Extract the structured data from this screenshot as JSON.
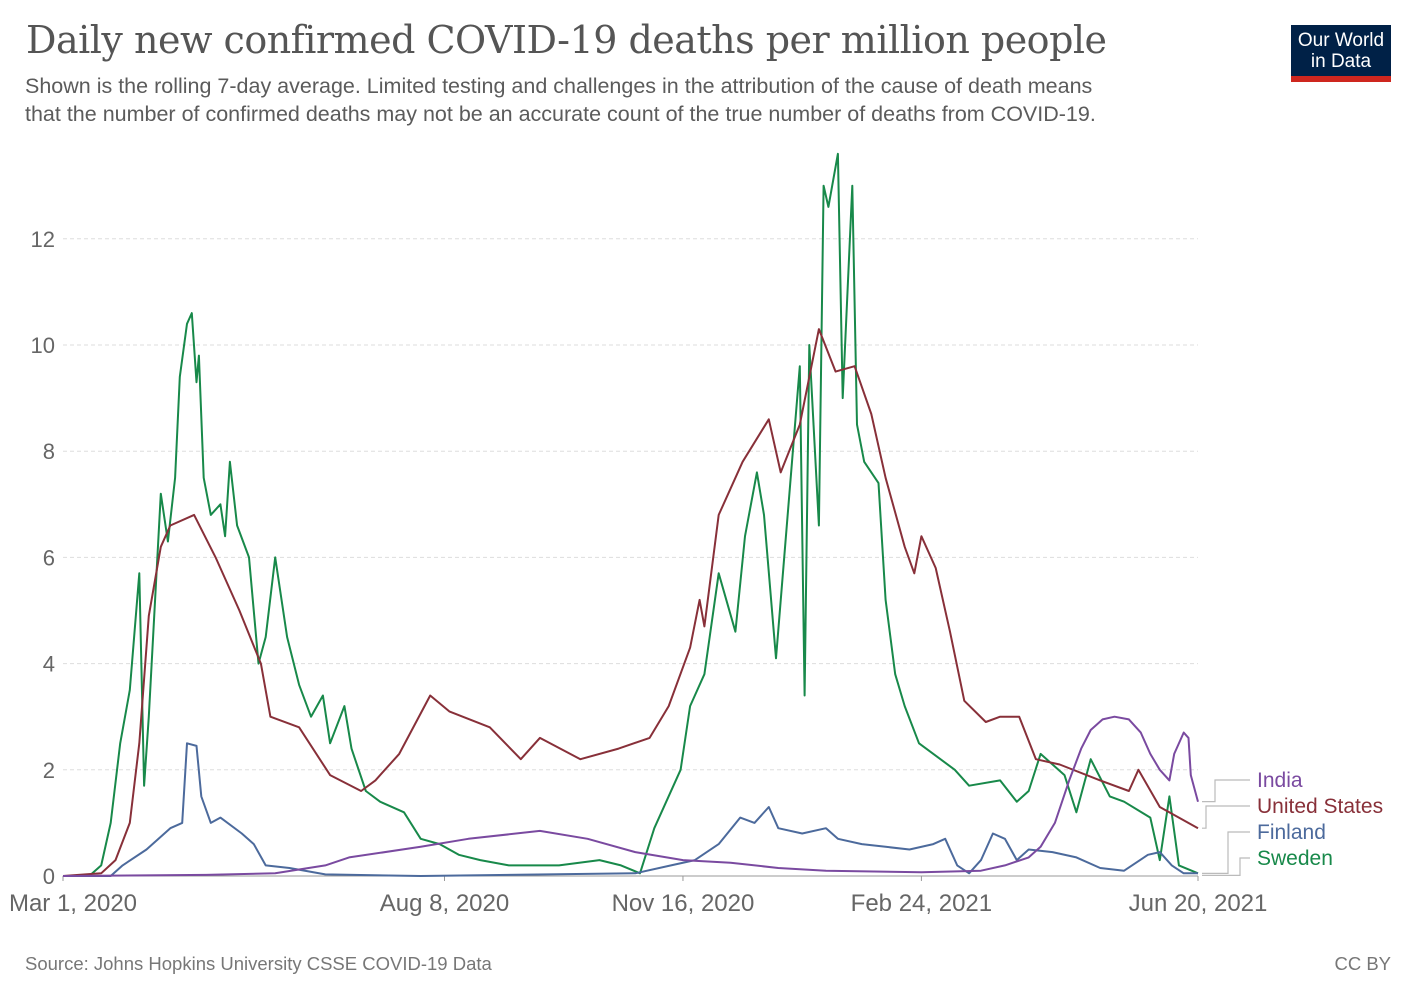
{
  "header": {
    "title": "Daily new confirmed COVID-19 deaths per million people",
    "subtitle_line1": "Shown is the rolling 7-day average. Limited testing and challenges in the attribution of the cause of death means",
    "subtitle_line2": "that the number of confirmed deaths may not be an accurate count of the true number of deaths from COVID-19.",
    "logo_line1": "Our World",
    "logo_line2": "in Data"
  },
  "footer": {
    "source": "Source: Johns Hopkins University CSSE COVID-19 Data",
    "license": "CC BY"
  },
  "chart_data": {
    "type": "line",
    "title": "Daily new confirmed COVID-19 deaths per million people",
    "xlabel": "",
    "ylabel": "",
    "xlim": [
      "2020-03-01",
      "2021-06-20"
    ],
    "ylim": [
      0,
      13.7
    ],
    "grid": "horizontal dashed",
    "legend": "right, labels at line ends",
    "x_ticks": [
      {
        "date": "2020-03-01",
        "label": "Mar 1, 2020"
      },
      {
        "date": "2020-08-08",
        "label": "Aug 8, 2020"
      },
      {
        "date": "2020-11-16",
        "label": "Nov 16, 2020"
      },
      {
        "date": "2021-02-24",
        "label": "Feb 24, 2021"
      },
      {
        "date": "2021-06-20",
        "label": "Jun 20, 2021"
      }
    ],
    "y_ticks": [
      {
        "value": 0,
        "label": "0"
      },
      {
        "value": 2,
        "label": "2"
      },
      {
        "value": 4,
        "label": "4"
      },
      {
        "value": 6,
        "label": "6"
      },
      {
        "value": 8,
        "label": "8"
      },
      {
        "value": 10,
        "label": "10"
      },
      {
        "value": 12,
        "label": "12"
      }
    ],
    "series": [
      {
        "name": "Sweden",
        "color": "#18894a",
        "points": [
          [
            "2020-03-01",
            0
          ],
          [
            "2020-03-12",
            0
          ],
          [
            "2020-03-17",
            0.2
          ],
          [
            "2020-03-21",
            1.0
          ],
          [
            "2020-03-25",
            2.5
          ],
          [
            "2020-03-29",
            3.5
          ],
          [
            "2020-04-02",
            5.7
          ],
          [
            "2020-04-04",
            1.7
          ],
          [
            "2020-04-06",
            3.0
          ],
          [
            "2020-04-11",
            7.2
          ],
          [
            "2020-04-14",
            6.3
          ],
          [
            "2020-04-17",
            7.5
          ],
          [
            "2020-04-19",
            9.4
          ],
          [
            "2020-04-22",
            10.4
          ],
          [
            "2020-04-24",
            10.6
          ],
          [
            "2020-04-26",
            9.3
          ],
          [
            "2020-04-27",
            9.8
          ],
          [
            "2020-04-29",
            7.5
          ],
          [
            "2020-05-02",
            6.8
          ],
          [
            "2020-05-06",
            7.0
          ],
          [
            "2020-05-08",
            6.4
          ],
          [
            "2020-05-10",
            7.8
          ],
          [
            "2020-05-13",
            6.6
          ],
          [
            "2020-05-18",
            6.0
          ],
          [
            "2020-05-22",
            4.0
          ],
          [
            "2020-05-25",
            4.5
          ],
          [
            "2020-05-29",
            6.0
          ],
          [
            "2020-06-03",
            4.5
          ],
          [
            "2020-06-08",
            3.6
          ],
          [
            "2020-06-13",
            3.0
          ],
          [
            "2020-06-18",
            3.4
          ],
          [
            "2020-06-21",
            2.5
          ],
          [
            "2020-06-27",
            3.2
          ],
          [
            "2020-06-30",
            2.4
          ],
          [
            "2020-07-06",
            1.6
          ],
          [
            "2020-07-12",
            1.4
          ],
          [
            "2020-07-22",
            1.2
          ],
          [
            "2020-07-29",
            0.7
          ],
          [
            "2020-08-06",
            0.6
          ],
          [
            "2020-08-14",
            0.4
          ],
          [
            "2020-08-23",
            0.3
          ],
          [
            "2020-09-04",
            0.2
          ],
          [
            "2020-09-25",
            0.2
          ],
          [
            "2020-10-12",
            0.3
          ],
          [
            "2020-10-21",
            0.2
          ],
          [
            "2020-10-29",
            0.05
          ],
          [
            "2020-11-04",
            0.9
          ],
          [
            "2020-11-15",
            2.0
          ],
          [
            "2020-11-19",
            3.2
          ],
          [
            "2020-11-25",
            3.8
          ],
          [
            "2020-12-01",
            5.7
          ],
          [
            "2020-12-08",
            4.6
          ],
          [
            "2020-12-12",
            6.4
          ],
          [
            "2020-12-17",
            7.6
          ],
          [
            "2020-12-20",
            6.8
          ],
          [
            "2020-12-25",
            4.1
          ],
          [
            "2020-12-29",
            6.3
          ],
          [
            "2021-01-04",
            9.6
          ],
          [
            "2021-01-06",
            3.4
          ],
          [
            "2021-01-08",
            10.0
          ],
          [
            "2021-01-12",
            6.6
          ],
          [
            "2021-01-14",
            13.0
          ],
          [
            "2021-01-16",
            12.6
          ],
          [
            "2021-01-20",
            13.6
          ],
          [
            "2021-01-22",
            9.0
          ],
          [
            "2021-01-26",
            13.0
          ],
          [
            "2021-01-28",
            8.5
          ],
          [
            "2021-01-31",
            7.8
          ],
          [
            "2021-02-06",
            7.4
          ],
          [
            "2021-02-09",
            5.2
          ],
          [
            "2021-02-13",
            3.8
          ],
          [
            "2021-02-17",
            3.2
          ],
          [
            "2021-02-23",
            2.5
          ],
          [
            "2021-03-10",
            2.0
          ],
          [
            "2021-03-16",
            1.7
          ],
          [
            "2021-03-29",
            1.8
          ],
          [
            "2021-04-05",
            1.4
          ],
          [
            "2021-04-10",
            1.6
          ],
          [
            "2021-04-15",
            2.3
          ],
          [
            "2021-04-25",
            1.9
          ],
          [
            "2021-04-30",
            1.2
          ],
          [
            "2021-05-06",
            2.2
          ],
          [
            "2021-05-14",
            1.5
          ],
          [
            "2021-05-20",
            1.4
          ],
          [
            "2021-05-31",
            1.1
          ],
          [
            "2021-06-04",
            0.3
          ],
          [
            "2021-06-08",
            1.5
          ],
          [
            "2021-06-12",
            0.2
          ],
          [
            "2021-06-20",
            0.05
          ]
        ]
      },
      {
        "name": "United States",
        "color": "#883039",
        "points": [
          [
            "2020-03-01",
            0
          ],
          [
            "2020-03-17",
            0.05
          ],
          [
            "2020-03-23",
            0.3
          ],
          [
            "2020-03-29",
            1.0
          ],
          [
            "2020-04-02",
            2.5
          ],
          [
            "2020-04-06",
            4.9
          ],
          [
            "2020-04-11",
            6.2
          ],
          [
            "2020-04-15",
            6.6
          ],
          [
            "2020-04-25",
            6.8
          ],
          [
            "2020-05-04",
            6.0
          ],
          [
            "2020-05-14",
            5.0
          ],
          [
            "2020-05-23",
            4.0
          ],
          [
            "2020-05-27",
            3.0
          ],
          [
            "2020-06-08",
            2.8
          ],
          [
            "2020-06-21",
            1.9
          ],
          [
            "2020-07-04",
            1.6
          ],
          [
            "2020-07-10",
            1.8
          ],
          [
            "2020-07-20",
            2.3
          ],
          [
            "2020-08-02",
            3.4
          ],
          [
            "2020-08-10",
            3.1
          ],
          [
            "2020-08-27",
            2.8
          ],
          [
            "2020-09-09",
            2.2
          ],
          [
            "2020-09-17",
            2.6
          ],
          [
            "2020-10-04",
            2.2
          ],
          [
            "2020-10-20",
            2.4
          ],
          [
            "2020-11-02",
            2.6
          ],
          [
            "2020-11-10",
            3.2
          ],
          [
            "2020-11-19",
            4.3
          ],
          [
            "2020-11-23",
            5.2
          ],
          [
            "2020-11-25",
            4.7
          ],
          [
            "2020-12-01",
            6.8
          ],
          [
            "2020-12-11",
            7.8
          ],
          [
            "2020-12-22",
            8.6
          ],
          [
            "2020-12-27",
            7.6
          ],
          [
            "2021-01-04",
            8.5
          ],
          [
            "2021-01-12",
            10.3
          ],
          [
            "2021-01-19",
            9.5
          ],
          [
            "2021-01-27",
            9.6
          ],
          [
            "2021-02-03",
            8.7
          ],
          [
            "2021-02-09",
            7.5
          ],
          [
            "2021-02-17",
            6.2
          ],
          [
            "2021-02-21",
            5.7
          ],
          [
            "2021-02-24",
            6.4
          ],
          [
            "2021-03-02",
            5.8
          ],
          [
            "2021-03-08",
            4.6
          ],
          [
            "2021-03-14",
            3.3
          ],
          [
            "2021-03-23",
            2.9
          ],
          [
            "2021-03-29",
            3.0
          ],
          [
            "2021-04-06",
            3.0
          ],
          [
            "2021-04-13",
            2.2
          ],
          [
            "2021-04-23",
            2.1
          ],
          [
            "2021-05-10",
            1.8
          ],
          [
            "2021-05-22",
            1.6
          ],
          [
            "2021-05-26",
            2.0
          ],
          [
            "2021-06-04",
            1.3
          ],
          [
            "2021-06-12",
            1.1
          ],
          [
            "2021-06-20",
            0.9
          ]
        ]
      },
      {
        "name": "Finland",
        "color": "#4c6a9c",
        "points": [
          [
            "2020-03-01",
            0
          ],
          [
            "2020-03-21",
            0
          ],
          [
            "2020-03-26",
            0.2
          ],
          [
            "2020-04-05",
            0.5
          ],
          [
            "2020-04-15",
            0.9
          ],
          [
            "2020-04-20",
            1.0
          ],
          [
            "2020-04-22",
            2.5
          ],
          [
            "2020-04-26",
            2.45
          ],
          [
            "2020-04-28",
            1.5
          ],
          [
            "2020-05-02",
            1.0
          ],
          [
            "2020-05-06",
            1.1
          ],
          [
            "2020-05-15",
            0.8
          ],
          [
            "2020-05-20",
            0.6
          ],
          [
            "2020-05-25",
            0.2
          ],
          [
            "2020-06-04",
            0.15
          ],
          [
            "2020-06-19",
            0.03
          ],
          [
            "2020-07-29",
            0
          ],
          [
            "2020-10-27",
            0.05
          ],
          [
            "2020-11-11",
            0.2
          ],
          [
            "2020-11-21",
            0.3
          ],
          [
            "2020-12-01",
            0.6
          ],
          [
            "2020-12-10",
            1.1
          ],
          [
            "2020-12-16",
            1.0
          ],
          [
            "2020-12-22",
            1.3
          ],
          [
            "2020-12-26",
            0.9
          ],
          [
            "2021-01-05",
            0.8
          ],
          [
            "2021-01-15",
            0.9
          ],
          [
            "2021-01-20",
            0.7
          ],
          [
            "2021-01-30",
            0.6
          ],
          [
            "2021-02-09",
            0.55
          ],
          [
            "2021-02-19",
            0.5
          ],
          [
            "2021-03-01",
            0.6
          ],
          [
            "2021-03-06",
            0.7
          ],
          [
            "2021-03-11",
            0.2
          ],
          [
            "2021-03-16",
            0.05
          ],
          [
            "2021-03-21",
            0.3
          ],
          [
            "2021-03-26",
            0.8
          ],
          [
            "2021-03-31",
            0.7
          ],
          [
            "2021-04-05",
            0.3
          ],
          [
            "2021-04-10",
            0.5
          ],
          [
            "2021-04-20",
            0.45
          ],
          [
            "2021-04-30",
            0.35
          ],
          [
            "2021-05-10",
            0.15
          ],
          [
            "2021-05-20",
            0.1
          ],
          [
            "2021-05-30",
            0.4
          ],
          [
            "2021-06-04",
            0.45
          ],
          [
            "2021-06-09",
            0.2
          ],
          [
            "2021-06-14",
            0.05
          ],
          [
            "2021-06-20",
            0.05
          ]
        ]
      },
      {
        "name": "India",
        "color": "#7a4aa0",
        "points": [
          [
            "2020-03-01",
            0
          ],
          [
            "2020-04-30",
            0.02
          ],
          [
            "2020-05-29",
            0.05
          ],
          [
            "2020-06-19",
            0.2
          ],
          [
            "2020-06-29",
            0.35
          ],
          [
            "2020-07-29",
            0.55
          ],
          [
            "2020-08-18",
            0.7
          ],
          [
            "2020-09-17",
            0.85
          ],
          [
            "2020-10-07",
            0.7
          ],
          [
            "2020-10-27",
            0.45
          ],
          [
            "2020-11-16",
            0.3
          ],
          [
            "2020-12-06",
            0.25
          ],
          [
            "2020-12-26",
            0.15
          ],
          [
            "2021-01-15",
            0.1
          ],
          [
            "2021-02-24",
            0.07
          ],
          [
            "2021-03-21",
            0.1
          ],
          [
            "2021-03-31",
            0.2
          ],
          [
            "2021-04-10",
            0.35
          ],
          [
            "2021-04-15",
            0.55
          ],
          [
            "2021-04-21",
            1.0
          ],
          [
            "2021-04-27",
            1.8
          ],
          [
            "2021-05-02",
            2.4
          ],
          [
            "2021-05-06",
            2.75
          ],
          [
            "2021-05-11",
            2.95
          ],
          [
            "2021-05-16",
            3.0
          ],
          [
            "2021-05-22",
            2.95
          ],
          [
            "2021-05-27",
            2.7
          ],
          [
            "2021-05-31",
            2.3
          ],
          [
            "2021-06-04",
            2.0
          ],
          [
            "2021-06-08",
            1.8
          ],
          [
            "2021-06-10",
            2.3
          ],
          [
            "2021-06-14",
            2.7
          ],
          [
            "2021-06-16",
            2.6
          ],
          [
            "2021-06-17",
            1.9
          ],
          [
            "2021-06-20",
            1.4
          ]
        ]
      }
    ],
    "legend_order": [
      "India",
      "United States",
      "Finland",
      "Sweden"
    ]
  }
}
